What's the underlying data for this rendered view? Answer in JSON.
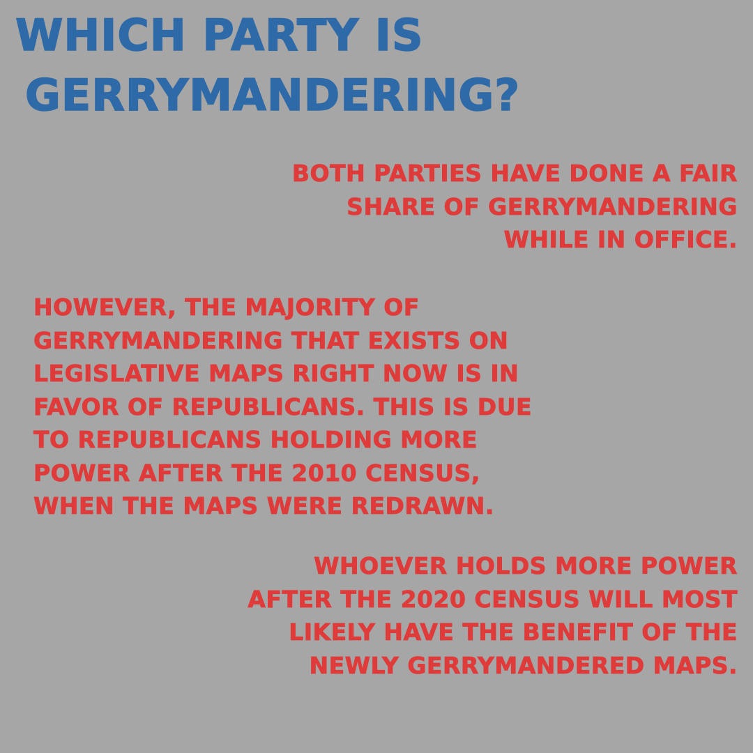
{
  "title": {
    "line1": "WHICH PARTY IS",
    "line2": "GERRYMANDERING?"
  },
  "paragraphs": [
    {
      "lines": [
        "BOTH PARTIES HAVE DONE A FAIR",
        "SHARE OF GERRYMANDERING",
        "WHILE IN OFFICE."
      ]
    },
    {
      "lines": [
        "HOWEVER, THE MAJORITY OF",
        "GERRYMANDERING THAT EXISTS ON",
        "LEGISLATIVE MAPS RIGHT NOW IS IN",
        "FAVOR OF REPUBLICANS. THIS IS DUE",
        "TO REPUBLICANS HOLDING MORE",
        "POWER AFTER THE 2010 CENSUS,",
        "WHEN THE MAPS WERE REDRAWN."
      ]
    },
    {
      "lines": [
        "WHOEVER HOLDS MORE POWER",
        "AFTER THE 2020 CENSUS WILL MOST",
        "LIKELY HAVE THE BENEFIT OF THE",
        "NEWLY GERRYMANDERED MAPS."
      ]
    }
  ],
  "colors": {
    "background": "#a6a6a6",
    "title": "#2f6aa8",
    "body_text": "#df3b3b"
  }
}
